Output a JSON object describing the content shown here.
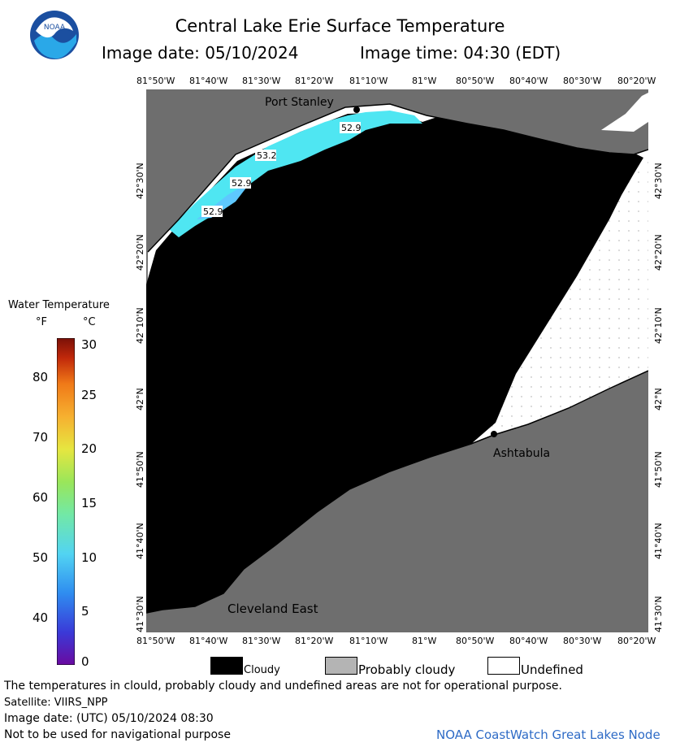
{
  "header": {
    "title": "Central Lake Erie Surface Temperature",
    "image_date": "Image date: 05/10/2024",
    "image_time": "Image time: 04:30 (EDT)"
  },
  "map": {
    "longitude_ticks": [
      "81°50'W",
      "81°40'W",
      "81°30'W",
      "81°20'W",
      "81°10'W",
      "81°W",
      "80°50'W",
      "80°40'W",
      "80°30'W",
      "80°20'W"
    ],
    "latitude_ticks": [
      "42°30'N",
      "42°20'N",
      "42°10'N",
      "42°N",
      "41°50'N",
      "41°40'N",
      "41°30'N"
    ],
    "places": [
      "Port Stanley",
      "Ashtabula",
      "Cleveland East"
    ],
    "temperature_labels": [
      "52.9",
      "53.2",
      "52.9",
      "52.9"
    ],
    "colors": {
      "land": "#6e6e6e",
      "cloud": "#000000",
      "undefined": "#ffffff",
      "water_cyan": "#4fe6f2",
      "water_blue": "#5ec8ff"
    }
  },
  "legend": {
    "title": "Water Temperature",
    "unit_f": "°F",
    "unit_c": "°C",
    "f_ticks": [
      "80",
      "70",
      "60",
      "50",
      "40"
    ],
    "c_ticks": [
      "30",
      "25",
      "20",
      "15",
      "10",
      "5",
      "0"
    ],
    "colorbar": [
      "#6a0aa0",
      "#3a3ad8",
      "#2f8df0",
      "#52d4f2",
      "#72e8a6",
      "#9ae65a",
      "#e6e640",
      "#f6b030",
      "#f07a18",
      "#c0280a",
      "#7a1008"
    ]
  },
  "key": {
    "cloudy": "Cloudy",
    "probably_cloudy": "Probably cloudy",
    "undefined": "Undefined"
  },
  "footer": {
    "disclaimer": "The temperatures in clould, probably cloudy and undefined areas are not for operational purpose.",
    "satellite": "Satellite: VIIRS_NPP",
    "utc_date": "Image date: (UTC) 05/10/2024  08:30",
    "navigation": "Not to be used for navigational purpose",
    "credit": "NOAA CoastWatch Great Lakes Node"
  }
}
